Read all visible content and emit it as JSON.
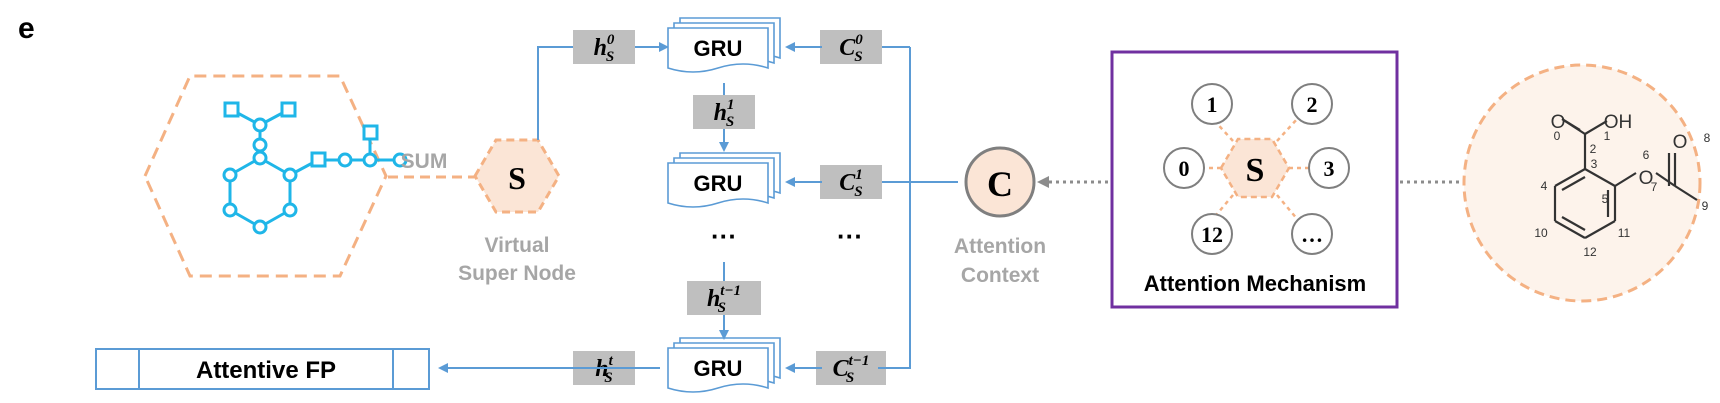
{
  "panel_label": "e",
  "sum_label": "SUM",
  "super_node": {
    "symbol": "S",
    "caption_line1": "Virtual",
    "caption_line2": "Super Node"
  },
  "gru_label": "GRU",
  "dots": "···",
  "h_states": [
    {
      "base": "h",
      "sub": "S",
      "sup": "0"
    },
    {
      "base": "h",
      "sub": "S",
      "sup": "1"
    },
    {
      "base": "h",
      "sub": "S",
      "sup": "t−1"
    },
    {
      "base": "h",
      "sub": "S",
      "sup": "t"
    }
  ],
  "c_states": [
    {
      "base": "C",
      "sub": "S",
      "sup": "0"
    },
    {
      "base": "C",
      "sub": "S",
      "sup": "1"
    },
    {
      "base": "C",
      "sub": "S",
      "sup": "t−1"
    }
  ],
  "context_node": {
    "symbol": "C",
    "caption_line1": "Attention",
    "caption_line2": "Context"
  },
  "output_label": "Attentive FP",
  "attention": {
    "center": "S",
    "neighbors": [
      "1",
      "2",
      "0",
      "3",
      "12",
      "…"
    ],
    "title": "Attention Mechanism"
  },
  "molecule": {
    "atoms": [
      "O",
      "OH",
      "O",
      "O"
    ],
    "indices": [
      "0",
      "1",
      "2",
      "3",
      "4",
      "5",
      "6",
      "7",
      "8",
      "9",
      "10",
      "11",
      "12"
    ]
  },
  "colors": {
    "orange_dashed": "#f4b183",
    "orange_fill": "#fbe5d6",
    "cyan": "#1fb6e8",
    "blue": "#5b9bd5",
    "box_gray": "#bfbfbf",
    "purple": "#7030a0",
    "text_gray": "#a6a6a6",
    "dotted_gray": "#8c8c8c",
    "dark_text": "#000000"
  }
}
